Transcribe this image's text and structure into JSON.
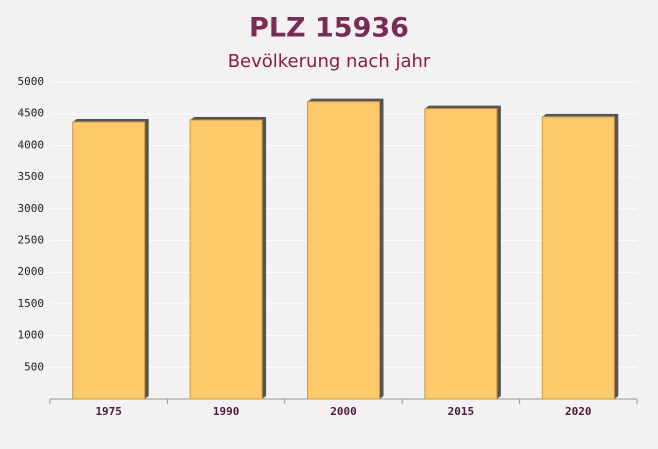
{
  "chart_data": {
    "type": "bar",
    "title": "PLZ 15936",
    "subtitle": "Bevölkerung nach jahr",
    "categories": [
      "1975",
      "1990",
      "2000",
      "2015",
      "2020"
    ],
    "values": [
      4370,
      4400,
      4690,
      4580,
      4450
    ],
    "color": "#fec96a",
    "ylim": [
      0,
      5000
    ],
    "yticks": [
      500,
      1000,
      1500,
      2000,
      2500,
      3000,
      3500,
      4000,
      4500,
      5000
    ],
    "grid": true
  }
}
